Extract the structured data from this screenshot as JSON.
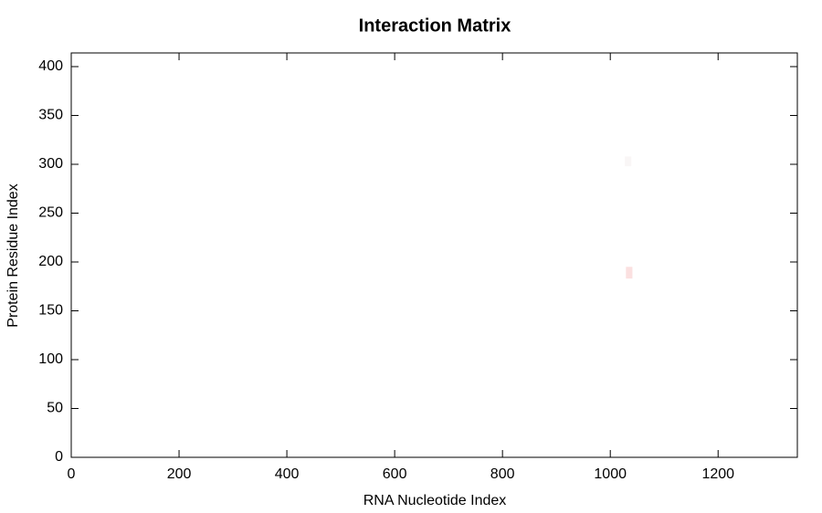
{
  "chart_data": {
    "type": "heatmap",
    "title": "Interaction Matrix",
    "xlabel": "RNA Nucleotide Index",
    "ylabel": "Protein Residue Index",
    "xlim": [
      0,
      1347
    ],
    "ylim": [
      0,
      414
    ],
    "xticks": [
      0,
      200,
      400,
      600,
      800,
      1000,
      1200
    ],
    "yticks": [
      0,
      50,
      100,
      150,
      200,
      250,
      300,
      350,
      400
    ],
    "cells": [
      {
        "x": [
          1029,
          1041
        ],
        "y": [
          183,
          195
        ],
        "color": "#fbe0e0"
      },
      {
        "x": [
          1027,
          1039
        ],
        "y": [
          298,
          308
        ],
        "color": "#f9f6f6"
      }
    ]
  }
}
